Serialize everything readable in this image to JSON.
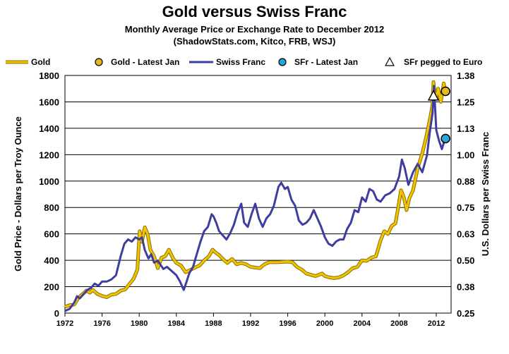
{
  "chart_data": {
    "type": "line",
    "title": "Gold versus Swiss Franc",
    "subtitle": "Monthly Average Price or Exchange Rate to December 2012",
    "source": "(ShadowStats.com, Kitco, FRB, WSJ)",
    "ylabel_left": "Gold Price - Dollars per Troy Ounce",
    "ylabel_right": "U.S. Dollars per Swiss Franc",
    "xlim": [
      1972,
      2013.6
    ],
    "ylim_left": [
      0,
      1800
    ],
    "ylim_right": [
      0.25,
      1.38
    ],
    "x_ticks": [
      "1972",
      "1976",
      "1980",
      "1984",
      "1988",
      "1992",
      "1996",
      "2000",
      "2004",
      "2008",
      "2012"
    ],
    "y_ticks_left": [
      "0",
      "200",
      "400",
      "600",
      "800",
      "1000",
      "1200",
      "1400",
      "1600",
      "1800"
    ],
    "y_ticks_right": [
      "0.25",
      "0.38",
      "0.50",
      "0.63",
      "0.75",
      "0.88",
      "1.00",
      "1.13",
      "1.25",
      "1.38"
    ],
    "grid": "horizontal",
    "legend_position": "top",
    "legend": [
      "Gold",
      "Gold - Latest Jan",
      "Swiss Franc",
      "SFr - Latest Jan",
      "SFr pegged to Euro"
    ],
    "colors": {
      "gold": "#f2c300",
      "gold_outline": "#8a7000",
      "franc": "#3e3ea0",
      "latest_sfr": "#29a8d8",
      "latest_gold": "#e8b81e"
    },
    "series": [
      {
        "name": "Gold",
        "axis": "left",
        "x": [
          1972.0,
          1972.5,
          1973.0,
          1973.5,
          1974.0,
          1974.3,
          1974.7,
          1975.0,
          1975.5,
          1976.0,
          1976.5,
          1977.0,
          1977.5,
          1978.0,
          1978.5,
          1979.0,
          1979.4,
          1979.8,
          1980.05,
          1980.3,
          1980.6,
          1980.9,
          1981.2,
          1981.6,
          1982.0,
          1982.4,
          1982.8,
          1983.2,
          1983.6,
          1984.0,
          1984.5,
          1985.0,
          1985.3,
          1985.6,
          1986.0,
          1986.5,
          1987.0,
          1987.5,
          1987.9,
          1988.2,
          1988.6,
          1989.0,
          1989.5,
          1990.0,
          1990.5,
          1991.0,
          1991.5,
          1992.0,
          1992.5,
          1993.0,
          1993.5,
          1994.0,
          1995.0,
          1996.0,
          1996.5,
          1997.0,
          1997.5,
          1998.0,
          1998.5,
          1999.0,
          1999.7,
          2000.0,
          2000.5,
          2001.0,
          2001.5,
          2002.0,
          2002.5,
          2003.0,
          2003.5,
          2004.0,
          2004.5,
          2005.0,
          2005.5,
          2006.0,
          2006.4,
          2006.8,
          2007.2,
          2007.6,
          2007.9,
          2008.2,
          2008.5,
          2008.8,
          2009.1,
          2009.5,
          2010.0,
          2010.5,
          2011.0,
          2011.4,
          2011.6,
          2011.7,
          2011.85,
          2012.0,
          2012.2,
          2012.5,
          2012.8,
          2012.95
        ],
        "values": [
          48,
          60,
          65,
          120,
          150,
          170,
          155,
          175,
          145,
          130,
          120,
          140,
          145,
          170,
          180,
          225,
          260,
          330,
          620,
          540,
          650,
          600,
          480,
          430,
          340,
          420,
          430,
          480,
          420,
          380,
          360,
          310,
          320,
          330,
          345,
          360,
          400,
          430,
          480,
          460,
          440,
          410,
          380,
          410,
          370,
          380,
          370,
          350,
          345,
          340,
          370,
          385,
          385,
          390,
          385,
          350,
          330,
          300,
          290,
          280,
          300,
          280,
          270,
          265,
          270,
          285,
          310,
          340,
          350,
          400,
          395,
          420,
          430,
          550,
          620,
          600,
          660,
          680,
          800,
          930,
          880,
          780,
          870,
          930,
          1100,
          1210,
          1360,
          1500,
          1580,
          1750,
          1650,
          1640,
          1700,
          1600,
          1740,
          1690
        ]
      },
      {
        "name": "Swiss Franc",
        "axis": "right",
        "x": [
          1972.0,
          1972.5,
          1973.0,
          1973.3,
          1973.6,
          1974.0,
          1974.4,
          1974.8,
          1975.2,
          1975.6,
          1976.0,
          1976.5,
          1977.0,
          1977.5,
          1978.0,
          1978.4,
          1978.8,
          1979.2,
          1979.6,
          1980.0,
          1980.3,
          1980.6,
          1981.0,
          1981.3,
          1981.6,
          1982.0,
          1982.3,
          1982.6,
          1983.0,
          1983.5,
          1984.0,
          1984.4,
          1984.8,
          1985.1,
          1985.4,
          1985.8,
          1986.2,
          1986.6,
          1987.0,
          1987.4,
          1987.8,
          1988.0,
          1988.3,
          1988.6,
          1989.0,
          1989.4,
          1989.8,
          1990.2,
          1990.6,
          1991.0,
          1991.3,
          1991.7,
          1992.1,
          1992.5,
          1992.9,
          1993.3,
          1993.7,
          1994.1,
          1994.5,
          1995.0,
          1995.3,
          1995.7,
          1996.0,
          1996.4,
          1996.8,
          1997.2,
          1997.6,
          1998.0,
          1998.4,
          1998.8,
          1999.2,
          1999.6,
          2000.0,
          2000.4,
          2000.8,
          2001.2,
          2001.6,
          2002.0,
          2002.4,
          2002.8,
          2003.2,
          2003.6,
          2004.0,
          2004.4,
          2004.8,
          2005.2,
          2005.6,
          2006.0,
          2006.5,
          2007.0,
          2007.5,
          2008.0,
          2008.3,
          2008.6,
          2009.0,
          2009.5,
          2010.0,
          2010.5,
          2011.0,
          2011.3,
          2011.6,
          2011.75,
          2012.0,
          2012.3,
          2012.6,
          2012.95
        ],
        "values": [
          0.26,
          0.27,
          0.3,
          0.33,
          0.32,
          0.34,
          0.36,
          0.37,
          0.39,
          0.38,
          0.4,
          0.4,
          0.41,
          0.43,
          0.52,
          0.58,
          0.6,
          0.59,
          0.61,
          0.6,
          0.61,
          0.55,
          0.51,
          0.53,
          0.49,
          0.5,
          0.48,
          0.46,
          0.47,
          0.45,
          0.43,
          0.4,
          0.36,
          0.4,
          0.44,
          0.47,
          0.53,
          0.59,
          0.64,
          0.66,
          0.72,
          0.71,
          0.68,
          0.64,
          0.62,
          0.6,
          0.63,
          0.67,
          0.73,
          0.77,
          0.68,
          0.66,
          0.72,
          0.77,
          0.7,
          0.66,
          0.7,
          0.72,
          0.76,
          0.85,
          0.87,
          0.84,
          0.85,
          0.79,
          0.76,
          0.69,
          0.67,
          0.68,
          0.7,
          0.74,
          0.7,
          0.66,
          0.61,
          0.58,
          0.57,
          0.59,
          0.6,
          0.6,
          0.65,
          0.68,
          0.74,
          0.73,
          0.8,
          0.78,
          0.84,
          0.83,
          0.79,
          0.78,
          0.81,
          0.82,
          0.84,
          0.9,
          0.98,
          0.94,
          0.86,
          0.92,
          0.96,
          0.92,
          1.0,
          1.11,
          1.2,
          1.33,
          1.12,
          1.07,
          1.03,
          1.08
        ]
      }
    ],
    "points": {
      "gold_latest_jan": {
        "x": 2013.0,
        "y": 1680
      },
      "sfr_latest_jan": {
        "x": 2013.0,
        "y": 1.08
      },
      "sfr_pegged": {
        "x": 2011.7,
        "y": 1.28
      }
    }
  }
}
